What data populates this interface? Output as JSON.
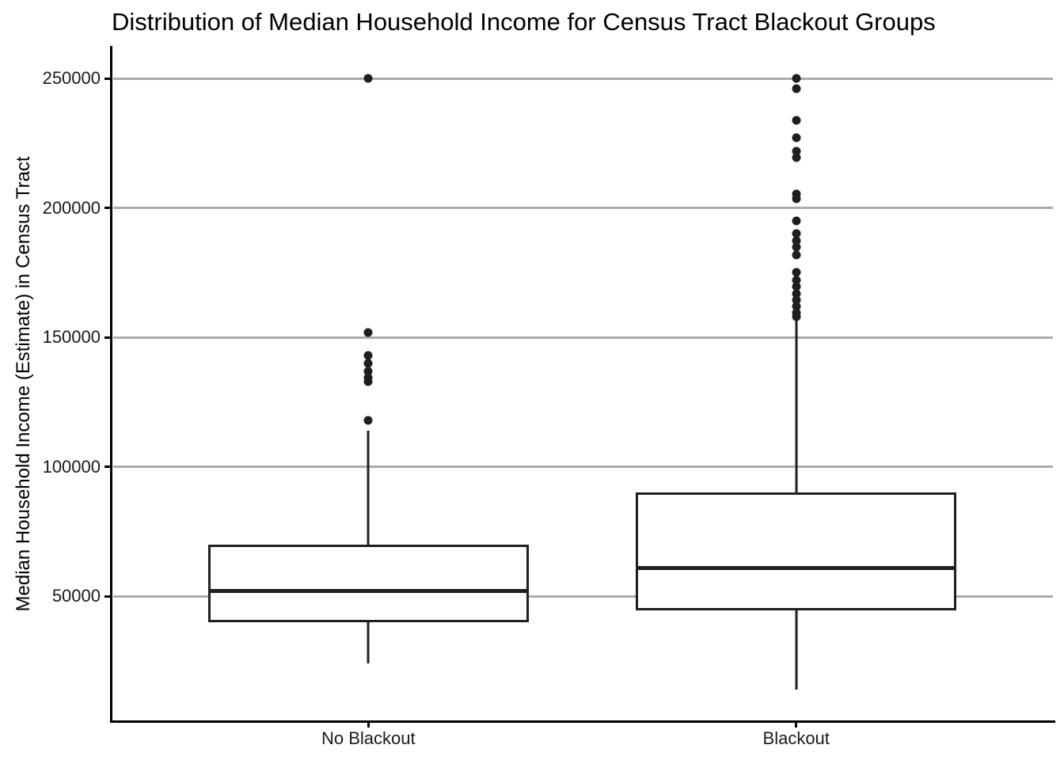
{
  "chart_data": {
    "type": "boxplot",
    "title": "Distribution of Median Household Income for Census Tract Blackout Groups",
    "ylabel": "Median Household Income (Estimate) in Census Tract",
    "xlabel": "",
    "categories": [
      "No Blackout",
      "Blackout"
    ],
    "ylim": [
      2000,
      262000
    ],
    "y_ticks": [
      50000,
      100000,
      150000,
      200000,
      250000
    ],
    "grid": "horizontal-major-only",
    "legend": "none",
    "series": [
      {
        "name": "No Blackout",
        "lower_whisker": 24000,
        "q1": 40000,
        "median": 52000,
        "q3": 70000,
        "upper_whisker": 114000,
        "outliers": [
          118000,
          133000,
          134500,
          137000,
          140000,
          143000,
          152000,
          250000
        ]
      },
      {
        "name": "Blackout",
        "lower_whisker": 14000,
        "q1": 44500,
        "median": 61000,
        "q3": 90000,
        "upper_whisker": 157000,
        "outliers": [
          158000,
          159500,
          162000,
          164500,
          167000,
          169500,
          172000,
          175000,
          182000,
          185000,
          187500,
          190000,
          195000,
          203500,
          205500,
          219500,
          222000,
          227000,
          234000,
          246000,
          250000
        ]
      }
    ]
  },
  "colors": {
    "ink": "#1f1f1f",
    "axis": "#000000",
    "gridline": "#ababab",
    "background": "#ffffff",
    "text": "#1a1a1a"
  }
}
